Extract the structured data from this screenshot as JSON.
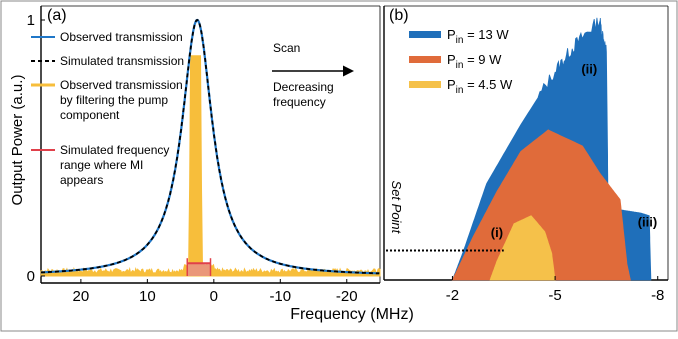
{
  "figure": {
    "x_axis_label": "Frequency (MHz)",
    "y_axis_label": "Output Power (a.u.)",
    "scan_label": "Scan",
    "scan_sub_label": "Decreasing\nfrequency",
    "arrow_color": "#000000"
  },
  "chart_data": [
    {
      "panel": "(a)",
      "type": "line",
      "xlim": [
        26,
        -25
      ],
      "ylim": [
        0,
        1
      ],
      "x_ticks": [
        "20",
        "10",
        "0",
        "-10",
        "-20"
      ],
      "x_tick_values": [
        20,
        10,
        0,
        -10,
        -20
      ],
      "y_ticks": [
        "1",
        "0"
      ],
      "y_tick_values": [
        1,
        0
      ],
      "grid": false,
      "legend_position": "upper-right (inside panel)",
      "series": [
        {
          "name": "Observed transmission",
          "color": "#1f77c8",
          "style": "solid",
          "shape": "Lorentzian",
          "center_x": 2.5,
          "peak_y": 1.0,
          "half_width_x": 2.8
        },
        {
          "name": "Simulated transmission",
          "color": "#000000",
          "style": "dashed",
          "shape": "Lorentzian",
          "center_x": 2.5,
          "peak_y": 1.0,
          "half_width_x": 2.8
        },
        {
          "name": "Observed transmission\nby filtering the pump\ncomponent",
          "color": "#f7be3b",
          "style": "filled-noisy",
          "baseline_y": 0.02,
          "peak_region_x": [
            3.4,
            2.0
          ],
          "peak_y": 0.86
        },
        {
          "name": "Simulated frequency\nrange where MI\nappears",
          "color": "#e0404a",
          "style": "range-bar",
          "x_range": [
            4.0,
            0.5
          ],
          "y_level": 0.05
        }
      ]
    },
    {
      "panel": "(b)",
      "type": "area",
      "xlim": [
        0,
        -8.3
      ],
      "ylim": [
        0,
        1
      ],
      "x_ticks": [
        "-2",
        "-5",
        "-8"
      ],
      "x_tick_values": [
        -2,
        -5,
        -8
      ],
      "axis_note": "Set Point",
      "set_point_y": 0.11,
      "grid": false,
      "legend_position": "upper-left (inside panel)",
      "series": [
        {
          "name": "P_in = 13 W",
          "name_main": "P",
          "name_sub": "in",
          "name_rest": " = 13 W",
          "color": "#1f6fba",
          "x": [
            -2.0,
            -2.3,
            -3.0,
            -4.0,
            -5.0,
            -5.6,
            -6.3,
            -6.5,
            -6.55,
            -7.0,
            -7.5,
            -7.75,
            -7.8
          ],
          "y": [
            0.0,
            0.1,
            0.36,
            0.58,
            0.78,
            0.88,
            0.97,
            0.85,
            0.27,
            0.26,
            0.25,
            0.24,
            0.0
          ]
        },
        {
          "name": "P_in = 9 W",
          "name_main": "P",
          "name_sub": "in",
          "name_rest": " = 9 W",
          "color": "#e06b3a",
          "x": [
            -2.0,
            -2.6,
            -3.3,
            -4.0,
            -4.8,
            -5.8,
            -6.3,
            -6.9,
            -7.1,
            -7.2
          ],
          "y": [
            0.0,
            0.16,
            0.33,
            0.48,
            0.56,
            0.5,
            0.4,
            0.3,
            0.06,
            0.0
          ]
        },
        {
          "name": "P_in = 4.5 W",
          "name_main": "P",
          "name_sub": "in",
          "name_rest": " = 4.5 W",
          "color": "#f5c14a",
          "x": [
            -3.1,
            -3.3,
            -3.8,
            -4.3,
            -4.7,
            -4.9,
            -5.0
          ],
          "y": [
            0.0,
            0.07,
            0.21,
            0.24,
            0.18,
            0.1,
            0.0
          ]
        }
      ],
      "annotations": [
        {
          "text": "(i)",
          "x": -3.3,
          "y": 0.16
        },
        {
          "text": "(ii)",
          "x": -6.0,
          "y": 0.77
        },
        {
          "text": "(iii)",
          "x": -7.7,
          "y": 0.2
        }
      ]
    }
  ]
}
